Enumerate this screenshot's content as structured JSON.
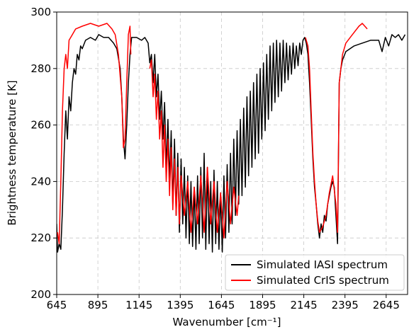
{
  "chart_data": {
    "type": "line",
    "xlabel": "Wavenumber [cm⁻¹]",
    "ylabel": "Brightness temperature [K]",
    "xlim": [
      645,
      2775
    ],
    "ylim": [
      200,
      300
    ],
    "xticks": [
      645,
      895,
      1145,
      1395,
      1645,
      1895,
      2145,
      2395,
      2645
    ],
    "yticks": [
      200,
      220,
      240,
      260,
      280,
      300
    ],
    "grid": true,
    "legend": "lower right",
    "series": [
      {
        "name": "Simulated IASI spectrum",
        "color": "#000000",
        "x": [
          645,
          650,
          660,
          670,
          680,
          690,
          700,
          710,
          720,
          730,
          740,
          750,
          760,
          770,
          780,
          790,
          800,
          820,
          850,
          880,
          900,
          930,
          960,
          990,
          1010,
          1030,
          1040,
          1050,
          1060,
          1070,
          1080,
          1090,
          1100,
          1130,
          1160,
          1180,
          1200,
          1210,
          1220,
          1230,
          1240,
          1250,
          1260,
          1270,
          1280,
          1290,
          1300,
          1310,
          1320,
          1330,
          1340,
          1350,
          1360,
          1370,
          1380,
          1390,
          1400,
          1410,
          1420,
          1430,
          1440,
          1450,
          1460,
          1470,
          1480,
          1490,
          1500,
          1510,
          1520,
          1530,
          1540,
          1550,
          1560,
          1570,
          1580,
          1590,
          1600,
          1610,
          1620,
          1630,
          1640,
          1650,
          1660,
          1670,
          1680,
          1690,
          1700,
          1710,
          1720,
          1730,
          1740,
          1750,
          1760,
          1770,
          1780,
          1790,
          1800,
          1810,
          1820,
          1830,
          1840,
          1850,
          1860,
          1870,
          1880,
          1890,
          1900,
          1910,
          1920,
          1930,
          1940,
          1950,
          1960,
          1970,
          1980,
          1990,
          2000,
          2010,
          2020,
          2030,
          2040,
          2050,
          2060,
          2070,
          2080,
          2090,
          2100,
          2110,
          2120,
          2130,
          2140,
          2150,
          2160,
          2170,
          2180,
          2190,
          2200,
          2210,
          2220,
          2230,
          2240,
          2250,
          2260,
          2270,
          2280,
          2290,
          2300,
          2310,
          2320,
          2330,
          2340,
          2350,
          2360,
          2370,
          2380,
          2400,
          2450,
          2500,
          2550,
          2600,
          2620,
          2640,
          2660,
          2680,
          2700,
          2720,
          2740,
          2760
        ],
        "values": [
          225,
          215,
          218,
          216,
          230,
          250,
          265,
          255,
          270,
          265,
          275,
          280,
          278,
          285,
          283,
          288,
          287,
          290,
          291,
          290,
          292,
          291,
          291,
          289,
          287,
          280,
          270,
          255,
          248,
          260,
          275,
          285,
          291,
          291,
          290,
          291,
          289,
          282,
          285,
          275,
          285,
          270,
          278,
          262,
          272,
          255,
          268,
          245,
          262,
          240,
          258,
          232,
          255,
          228,
          250,
          222,
          248,
          225,
          245,
          220,
          242,
          218,
          240,
          217,
          238,
          216,
          242,
          218,
          245,
          220,
          250,
          216,
          245,
          218,
          240,
          215,
          244,
          218,
          240,
          216,
          236,
          215,
          242,
          220,
          246,
          222,
          250,
          225,
          255,
          228,
          258,
          232,
          262,
          235,
          266,
          238,
          270,
          242,
          272,
          245,
          275,
          248,
          278,
          250,
          280,
          255,
          282,
          258,
          285,
          262,
          288,
          265,
          289,
          268,
          290,
          270,
          289,
          272,
          290,
          275,
          289,
          276,
          288,
          278,
          289,
          280,
          288,
          281,
          289,
          285,
          290,
          291,
          289,
          285,
          275,
          262,
          248,
          238,
          232,
          225,
          220,
          225,
          222,
          228,
          226,
          232,
          235,
          238,
          240,
          238,
          228,
          218,
          275,
          280,
          283,
          286,
          288,
          289,
          290,
          290,
          286,
          291,
          288,
          292,
          291,
          292,
          290,
          292
        ]
      },
      {
        "name": "Simulated CrIS spectrum",
        "color": "#ff0000",
        "x": [
          650,
          660,
          670,
          680,
          690,
          700,
          710,
          720,
          740,
          760,
          800,
          850,
          900,
          950,
          980,
          1000,
          1020,
          1040,
          1050,
          1060,
          1070,
          1080,
          1090,
          1095,
          1150,
          1210,
          1220,
          1230,
          1240,
          1250,
          1260,
          1270,
          1280,
          1290,
          1300,
          1310,
          1320,
          1330,
          1340,
          1350,
          1360,
          1370,
          1380,
          1390,
          1400,
          1420,
          1440,
          1460,
          1480,
          1500,
          1520,
          1540,
          1560,
          1580,
          1600,
          1620,
          1640,
          1660,
          1680,
          1700,
          1720,
          1740,
          1750,
          1950,
          2155,
          2170,
          2180,
          2190,
          2200,
          2210,
          2220,
          2230,
          2240,
          2260,
          2280,
          2300,
          2320,
          2340,
          2350,
          2360,
          2380,
          2400,
          2440,
          2480,
          2500,
          2530
        ],
        "values": [
          222,
          218,
          240,
          265,
          280,
          285,
          280,
          290,
          292,
          294,
          295,
          296,
          295,
          296,
          294,
          292,
          285,
          270,
          252,
          255,
          275,
          292,
          295,
          285,
          null,
          280,
          283,
          270,
          278,
          262,
          272,
          255,
          265,
          245,
          260,
          240,
          255,
          235,
          252,
          230,
          248,
          228,
          245,
          225,
          242,
          228,
          240,
          222,
          238,
          225,
          242,
          222,
          245,
          225,
          240,
          222,
          236,
          220,
          240,
          225,
          238,
          228,
          235,
          null,
          291,
          288,
          280,
          265,
          250,
          240,
          232,
          226,
          222,
          224,
          228,
          236,
          242,
          232,
          222,
          275,
          285,
          289,
          292,
          295,
          296,
          294
        ]
      }
    ]
  }
}
